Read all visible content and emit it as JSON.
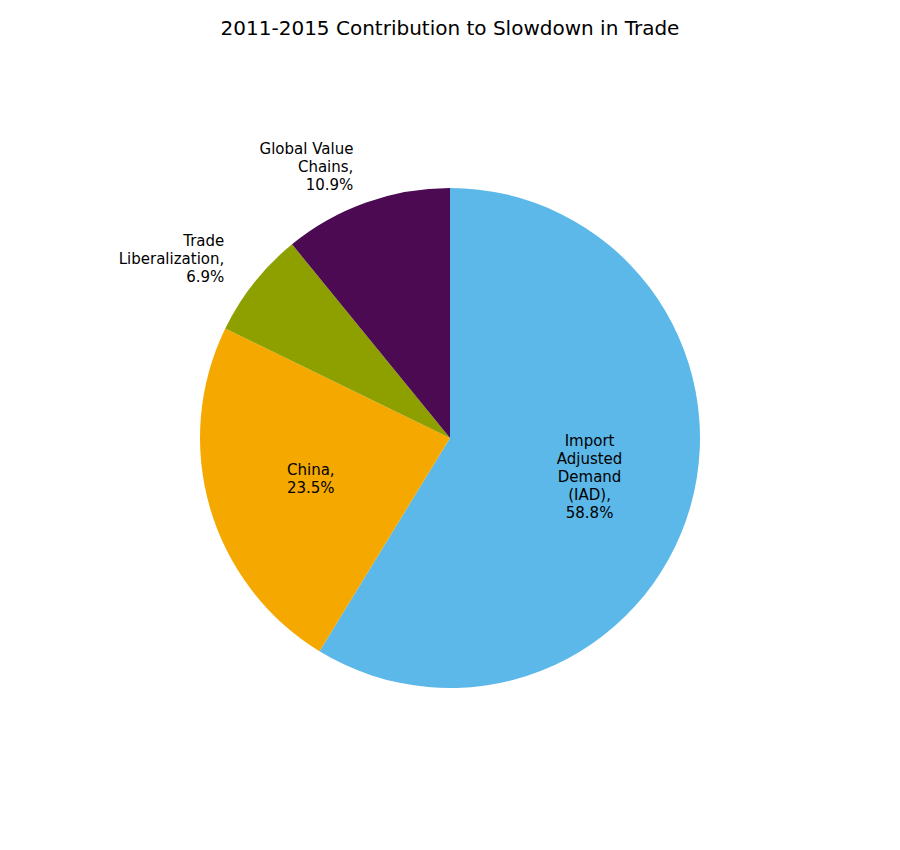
{
  "chart_data": {
    "type": "pie",
    "title": "2011-2015 Contribution to Slowdown in Trade",
    "categories": [
      "Import\nAdjusted\nDemand\n(IAD),\n58.8%",
      "China,\n23.5%",
      "Trade\nLiberalization,\n6.9%",
      "Global Value\nChains,\n10.9%"
    ],
    "values": [
      58.8,
      23.5,
      6.9,
      10.9
    ],
    "colors": [
      "#5BB8E8",
      "#F5A800",
      "#8EA000",
      "#4B0A52"
    ]
  }
}
